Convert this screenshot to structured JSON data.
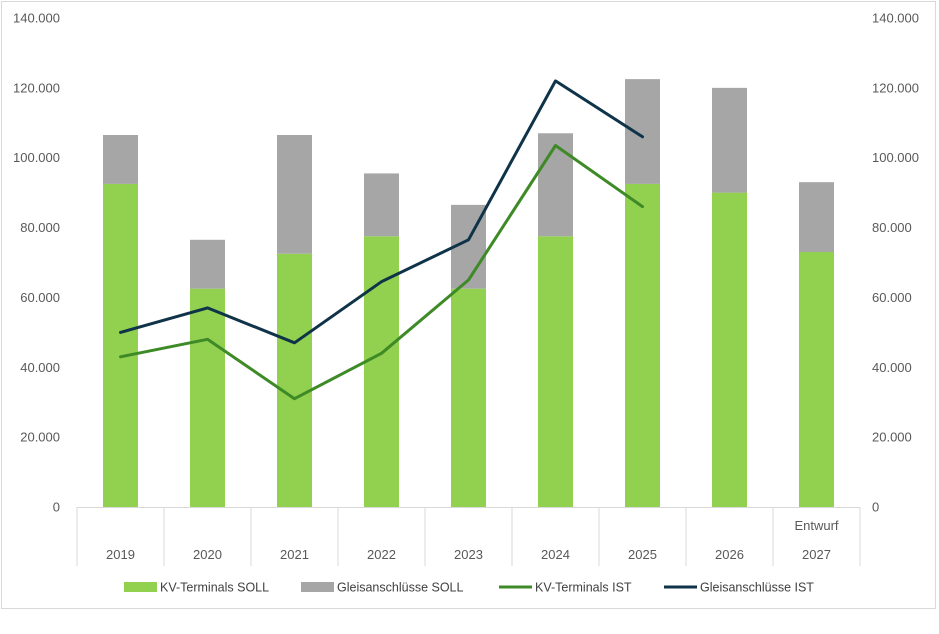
{
  "chart_data": {
    "type": "bar",
    "categories": [
      "2019",
      "2020",
      "2021",
      "2022",
      "2023",
      "2024",
      "2025",
      "2026",
      "2027"
    ],
    "category_notes": [
      "",
      "",
      "",
      "",
      "",
      "",
      "",
      "",
      "Entwurf"
    ],
    "stacked": true,
    "series": [
      {
        "name": "KV-Terminals SOLL",
        "type": "bar",
        "color": "#92d050",
        "values": [
          92500,
          62500,
          72500,
          77500,
          62500,
          77500,
          92500,
          90000,
          73000
        ]
      },
      {
        "name": "Gleisanschlüsse SOLL",
        "type": "bar",
        "color": "#a6a6a6",
        "values": [
          14000,
          14000,
          34000,
          18000,
          24000,
          29500,
          30000,
          30000,
          20000
        ]
      },
      {
        "name": "KV-Terminals IST",
        "type": "line",
        "color": "#3e8a27",
        "values": [
          43000,
          48000,
          31000,
          44000,
          65000,
          103500,
          86000,
          null,
          null
        ]
      },
      {
        "name": "Gleisanschlüsse IST",
        "type": "line",
        "color": "#0f3348",
        "values": [
          50000,
          57000,
          47000,
          64500,
          76500,
          122000,
          106000,
          null,
          null
        ]
      }
    ],
    "ylim": [
      0,
      140000
    ],
    "y_ticks": [
      "0",
      "20.000",
      "40.000",
      "60.000",
      "80.000",
      "100.000",
      "120.000",
      "140.000"
    ],
    "y_tick_values": [
      0,
      20000,
      40000,
      60000,
      80000,
      100000,
      120000,
      140000
    ],
    "secondary_y_ticks": [
      "0",
      "20.000",
      "40.000",
      "60.000",
      "80.000",
      "100.000",
      "120.000",
      "140.000"
    ],
    "grid": false,
    "legend_position": "bottom",
    "title": "",
    "xlabel": "",
    "ylabel": ""
  }
}
